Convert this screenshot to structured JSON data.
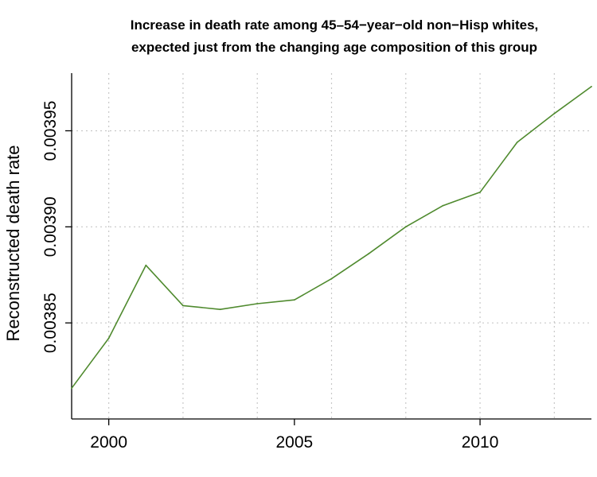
{
  "chart_data": {
    "type": "line",
    "title": [
      "Increase in death rate among 45–54−year−old non−Hisp whites,",
      "expected just from the changing age composition of this group"
    ],
    "xlabel": "",
    "ylabel": "Reconstructed death rate",
    "xlim": [
      1999,
      2013
    ],
    "ylim": [
      0.0038,
      0.00398
    ],
    "x_ticks": [
      2000,
      2005,
      2010
    ],
    "x_tick_labels": [
      "2000",
      "2005",
      "2010"
    ],
    "x_grid": [
      2000,
      2002,
      2004,
      2006,
      2008,
      2010,
      2012
    ],
    "y_ticks": [
      0.00385,
      0.0039,
      0.00395
    ],
    "y_tick_labels": [
      "0.00385",
      "0.00390",
      "0.00395"
    ],
    "grid": true,
    "series": [
      {
        "color": "#4f8a2e",
        "x": [
          1999,
          2000,
          2001,
          2002,
          2003,
          2004,
          2005,
          2006,
          2007,
          2008,
          2009,
          2010,
          2011,
          2012,
          2013
        ],
        "y": [
          0.003816,
          0.003842,
          0.00388,
          0.003859,
          0.003857,
          0.00386,
          0.003862,
          0.003873,
          0.003886,
          0.0039,
          0.003911,
          0.003918,
          0.003944,
          0.003959,
          0.003973
        ]
      }
    ]
  }
}
